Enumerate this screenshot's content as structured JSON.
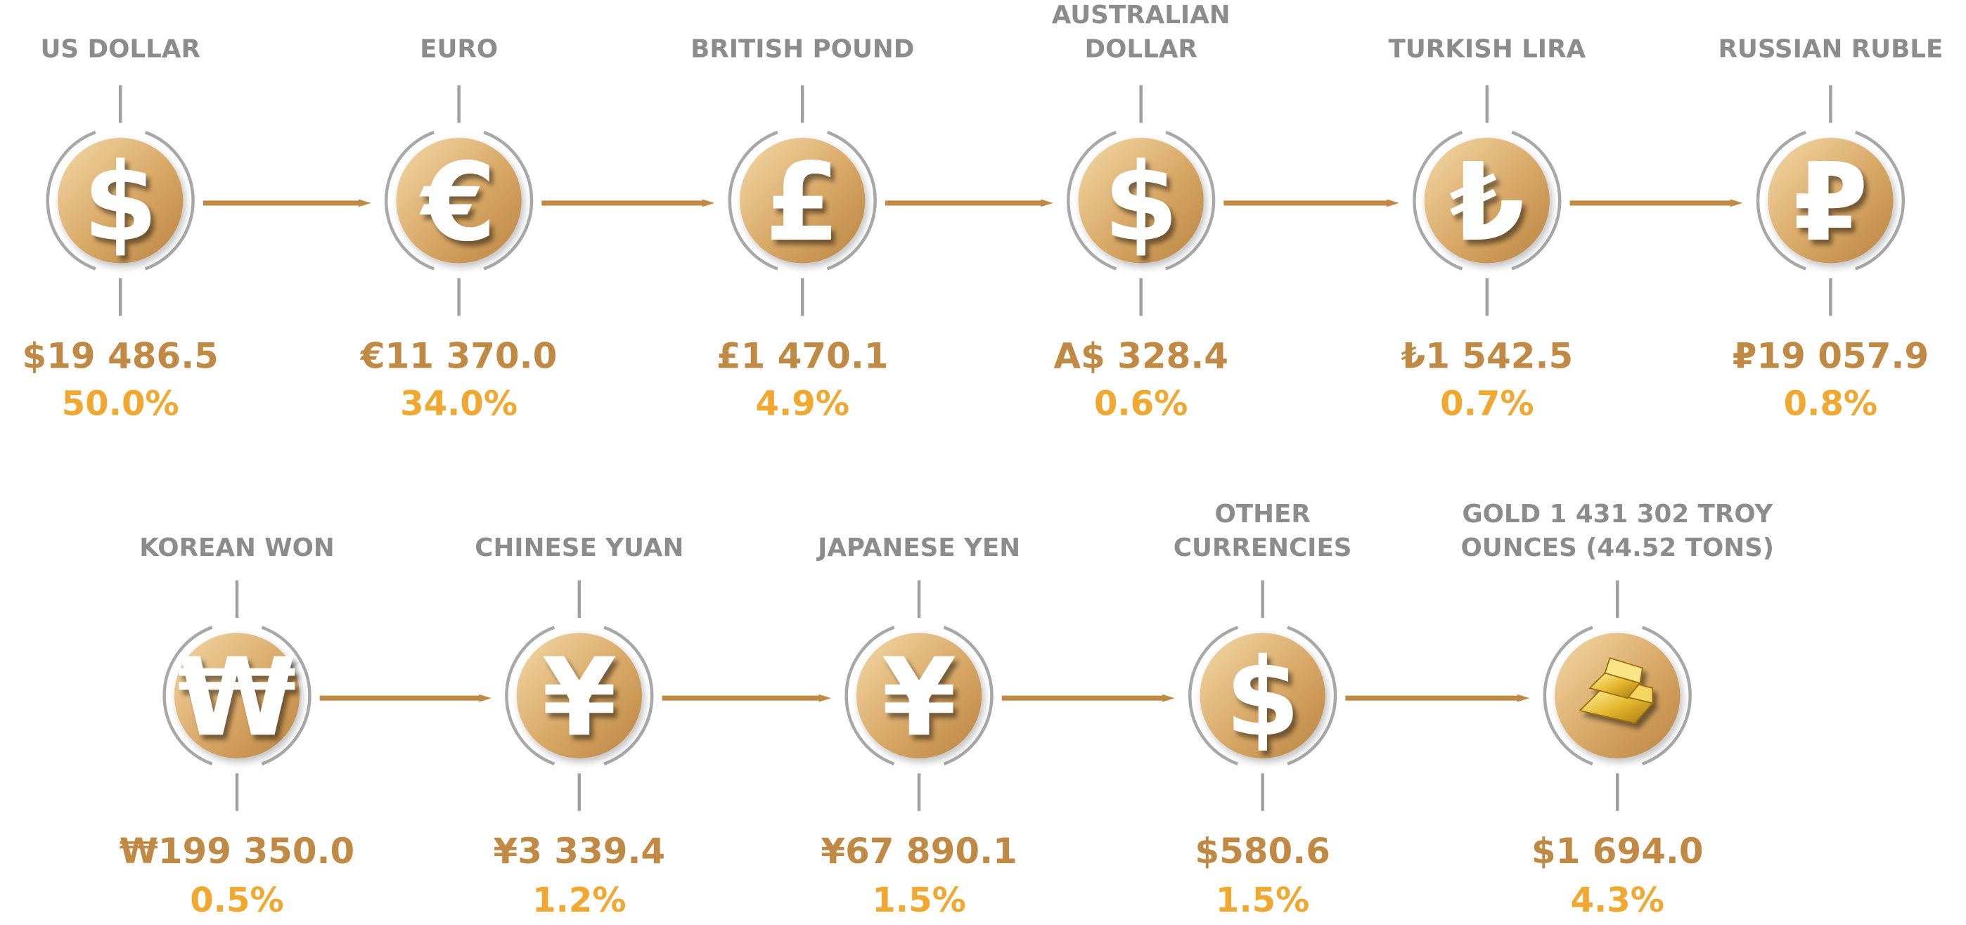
{
  "rows": [
    [
      {
        "label": [
          "US DOLLAR"
        ],
        "symbol": "$",
        "amount": "$19 486.5",
        "percent": "50.0%"
      },
      {
        "label": [
          "EURO"
        ],
        "symbol": "€",
        "amount": "€11 370.0",
        "percent": "34.0%"
      },
      {
        "label": [
          "BRITISH POUND"
        ],
        "symbol": "£",
        "amount": "£1 470.1",
        "percent": "4.9%"
      },
      {
        "label": [
          "AUSTRALIAN",
          "DOLLAR"
        ],
        "symbol": "$",
        "amount": "A$ 328.4",
        "percent": "0.6%"
      },
      {
        "label": [
          "TURKISH LIRA"
        ],
        "symbol": "₺",
        "amount": "₺1 542.5",
        "percent": "0.7%"
      },
      {
        "label": [
          "RUSSIAN RUBLE"
        ],
        "symbol": "₽",
        "amount": "₽19 057.9",
        "percent": "0.8%"
      }
    ],
    [
      {
        "label": [
          "KOREAN WON"
        ],
        "symbol": "₩",
        "amount": "₩199 350.0",
        "percent": "0.5%"
      },
      {
        "label": [
          "CHINESE YUAN"
        ],
        "symbol": "¥",
        "amount": "¥3 339.4",
        "percent": "1.2%"
      },
      {
        "label": [
          "JAPANESE YEN"
        ],
        "symbol": "¥",
        "amount": "¥67 890.1",
        "percent": "1.5%"
      },
      {
        "label": [
          "OTHER",
          "CURRENCIES"
        ],
        "symbol": "$",
        "amount": "$580.6",
        "percent": "1.5%"
      },
      {
        "label": [
          "GOLD 1 431 302 TROY",
          "OUNCES (44.52 TONS)"
        ],
        "amount": "$1 694.0",
        "percent": "4.3%"
      }
    ]
  ]
}
